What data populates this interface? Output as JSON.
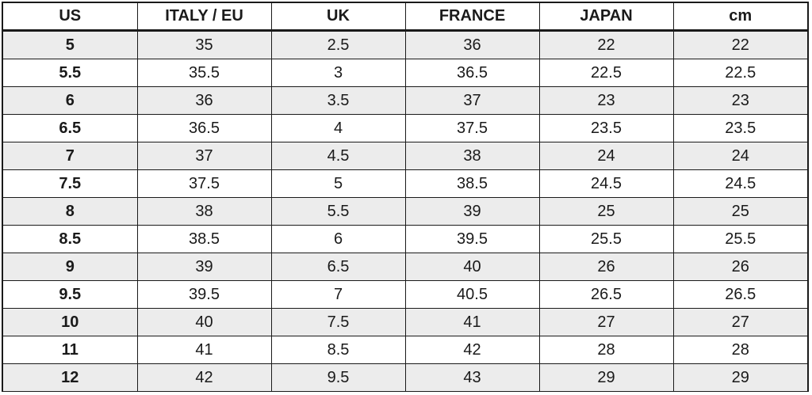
{
  "table": {
    "headers": [
      "US",
      "ITALY / EU",
      "UK",
      "FRANCE",
      "JAPAN",
      "cm"
    ],
    "rows": [
      [
        "5",
        "35",
        "2.5",
        "36",
        "22",
        "22"
      ],
      [
        "5.5",
        "35.5",
        "3",
        "36.5",
        "22.5",
        "22.5"
      ],
      [
        "6",
        "36",
        "3.5",
        "37",
        "23",
        "23"
      ],
      [
        "6.5",
        "36.5",
        "4",
        "37.5",
        "23.5",
        "23.5"
      ],
      [
        "7",
        "37",
        "4.5",
        "38",
        "24",
        "24"
      ],
      [
        "7.5",
        "37.5",
        "5",
        "38.5",
        "24.5",
        "24.5"
      ],
      [
        "8",
        "38",
        "5.5",
        "39",
        "25",
        "25"
      ],
      [
        "8.5",
        "38.5",
        "6",
        "39.5",
        "25.5",
        "25.5"
      ],
      [
        "9",
        "39",
        "6.5",
        "40",
        "26",
        "26"
      ],
      [
        "9.5",
        "39.5",
        "7",
        "40.5",
        "26.5",
        "26.5"
      ],
      [
        "10",
        "40",
        "7.5",
        "41",
        "27",
        "27"
      ],
      [
        "11",
        "41",
        "8.5",
        "42",
        "28",
        "28"
      ],
      [
        "12",
        "42",
        "9.5",
        "43",
        "29",
        "29"
      ]
    ]
  },
  "colors": {
    "border": "#1a1a1a",
    "stripe": "#ececec",
    "background": "#ffffff",
    "text": "#1a1a1a"
  }
}
